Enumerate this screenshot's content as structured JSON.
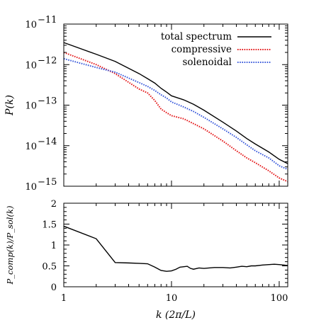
{
  "chart_data": [
    {
      "type": "line",
      "scale": {
        "x": "log",
        "y": "log"
      },
      "xlim": [
        1,
        120
      ],
      "ylim": [
        1e-15,
        1e-11
      ],
      "ylabel": "P(k)",
      "y_ticks": [
        {
          "value": 1e-11,
          "mantissa": "10",
          "exponent": "−11"
        },
        {
          "value": 1e-12,
          "mantissa": "10",
          "exponent": "−12"
        },
        {
          "value": 1e-13,
          "mantissa": "10",
          "exponent": "−13"
        },
        {
          "value": 1e-14,
          "mantissa": "10",
          "exponent": "−14"
        },
        {
          "value": 1e-15,
          "mantissa": "10",
          "exponent": "−15"
        }
      ],
      "legend_position": "top-right",
      "series": [
        {
          "name": "total spectrum",
          "color": "#000000",
          "style": "solid",
          "points": [
            [
              1,
              3.5e-12
            ],
            [
              2,
              1.8e-12
            ],
            [
              3,
              1.2e-12
            ],
            [
              5,
              6e-13
            ],
            [
              6,
              4.5e-13
            ],
            [
              7,
              3.5e-13
            ],
            [
              8,
              2.6e-13
            ],
            [
              9,
              2.1e-13
            ],
            [
              10,
              1.7e-13
            ],
            [
              13,
              1.35e-13
            ],
            [
              16,
              1.05e-13
            ],
            [
              20,
              7.5e-14
            ],
            [
              30,
              3.8e-14
            ],
            [
              40,
              2.3e-14
            ],
            [
              50,
              1.5e-14
            ],
            [
              60,
              1.1e-14
            ],
            [
              80,
              7e-15
            ],
            [
              100,
              4.6e-15
            ],
            [
              120,
              3.6e-15
            ]
          ]
        },
        {
          "name": "compressive",
          "color": "#e41a1c",
          "style": "dotted",
          "points": [
            [
              1,
              2e-12
            ],
            [
              2,
              1e-12
            ],
            [
              3,
              6e-13
            ],
            [
              5,
              2.5e-13
            ],
            [
              6,
              2e-13
            ],
            [
              7,
              1.3e-13
            ],
            [
              8,
              8e-14
            ],
            [
              9,
              6.5e-14
            ],
            [
              10,
              5.5e-14
            ],
            [
              13,
              4.6e-14
            ],
            [
              16,
              3.5e-14
            ],
            [
              20,
              2.6e-14
            ],
            [
              30,
              1.3e-14
            ],
            [
              40,
              7.5e-15
            ],
            [
              50,
              5e-15
            ],
            [
              60,
              3.8e-15
            ],
            [
              80,
              2.4e-15
            ],
            [
              100,
              1.6e-15
            ],
            [
              120,
              1.3e-15
            ]
          ]
        },
        {
          "name": "solenoidal",
          "color": "#3b5bdb",
          "style": "dotted",
          "points": [
            [
              1,
              1.4e-12
            ],
            [
              2,
              8.5e-13
            ],
            [
              3,
              6.5e-13
            ],
            [
              5,
              3.6e-13
            ],
            [
              6,
              2.9e-13
            ],
            [
              7,
              2.3e-13
            ],
            [
              8,
              1.8e-13
            ],
            [
              9,
              1.5e-13
            ],
            [
              10,
              1.2e-13
            ],
            [
              13,
              9e-14
            ],
            [
              16,
              7e-14
            ],
            [
              20,
              5e-14
            ],
            [
              30,
              2.6e-14
            ],
            [
              40,
              1.6e-14
            ],
            [
              50,
              1.05e-14
            ],
            [
              60,
              7.5e-15
            ],
            [
              80,
              5e-15
            ],
            [
              100,
              3.2e-15
            ],
            [
              120,
              2.6e-15
            ]
          ]
        }
      ]
    },
    {
      "type": "line",
      "scale": {
        "x": "log",
        "y": "linear"
      },
      "xlim": [
        1,
        120
      ],
      "ylim": [
        0,
        2
      ],
      "xlabel": "k (2π/L)",
      "ylabel": "P_comp(k)/P_sol(k)",
      "x_ticks": [
        {
          "value": 1,
          "label": "1"
        },
        {
          "value": 10,
          "label": "10"
        },
        {
          "value": 100,
          "label": "100"
        }
      ],
      "y_ticks": [
        {
          "value": 0,
          "label": "0"
        },
        {
          "value": 0.5,
          "label": "0.5"
        },
        {
          "value": 1,
          "label": "1"
        },
        {
          "value": 1.5,
          "label": "1.5"
        },
        {
          "value": 2,
          "label": "2"
        }
      ],
      "series": [
        {
          "color": "#000000",
          "style": "solid",
          "points": [
            [
              1,
              1.45
            ],
            [
              2,
              1.15
            ],
            [
              3,
              0.58
            ],
            [
              4,
              0.57
            ],
            [
              5,
              0.56
            ],
            [
              6,
              0.55
            ],
            [
              7,
              0.47
            ],
            [
              8,
              0.39
            ],
            [
              9,
              0.37
            ],
            [
              10,
              0.38
            ],
            [
              11,
              0.42
            ],
            [
              12,
              0.47
            ],
            [
              13,
              0.48
            ],
            [
              14,
              0.49
            ],
            [
              15,
              0.44
            ],
            [
              16,
              0.42
            ],
            [
              18,
              0.45
            ],
            [
              20,
              0.44
            ],
            [
              25,
              0.46
            ],
            [
              30,
              0.46
            ],
            [
              35,
              0.45
            ],
            [
              40,
              0.47
            ],
            [
              45,
              0.49
            ],
            [
              50,
              0.48
            ],
            [
              55,
              0.5
            ],
            [
              60,
              0.5
            ],
            [
              70,
              0.52
            ],
            [
              80,
              0.53
            ],
            [
              90,
              0.54
            ],
            [
              100,
              0.53
            ],
            [
              110,
              0.52
            ],
            [
              120,
              0.51
            ]
          ]
        }
      ]
    }
  ]
}
